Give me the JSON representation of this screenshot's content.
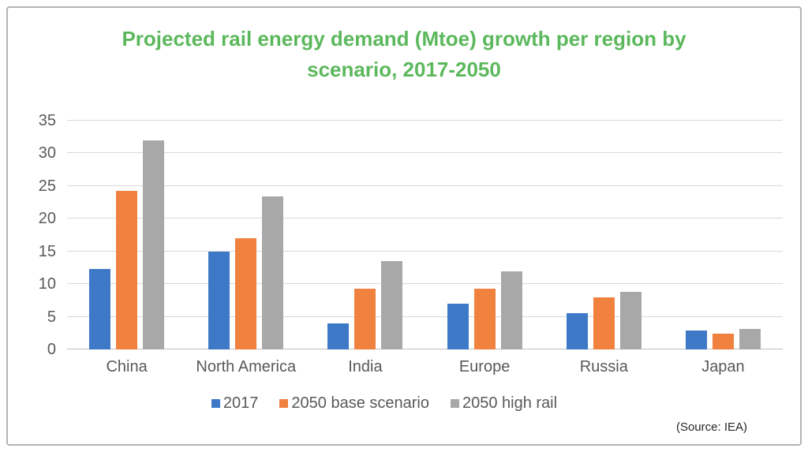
{
  "frame": {
    "border_color": "#b3b3b3",
    "background": "#ffffff"
  },
  "title": {
    "text": "Projected rail energy demand (Mtoe) growth per region by scenario, 2017-2050",
    "lines": [
      "Projected rail energy demand (Mtoe) growth per region by",
      "scenario, 2017-2050"
    ],
    "color": "#5cb85c"
  },
  "source_note": "(Source: IEA)",
  "chart_data": {
    "type": "bar",
    "title": "Projected rail energy demand (Mtoe) growth per region by scenario, 2017-2050",
    "categories": [
      "China",
      "North America",
      "India",
      "Europe",
      "Russia",
      "Japan"
    ],
    "series": [
      {
        "name": "2017",
        "color": "#3d79c7",
        "values": [
          12.3,
          15.0,
          4.0,
          7.0,
          5.6,
          2.9
        ]
      },
      {
        "name": "2050 base scenario",
        "color": "#f0813f",
        "values": [
          24.3,
          17.0,
          9.3,
          9.3,
          8.0,
          2.4
        ]
      },
      {
        "name": "2050 high rail",
        "color": "#a8a8a8",
        "values": [
          32.0,
          23.4,
          13.5,
          11.9,
          8.8,
          3.1
        ]
      }
    ],
    "xlabel": "",
    "ylabel": "",
    "ylim": [
      0,
      35
    ],
    "yticks": [
      0,
      5,
      10,
      15,
      20,
      25,
      30,
      35
    ],
    "grid": true,
    "legend_position": "bottom",
    "gridline_color": "#d9d9d9",
    "baseline_color": "#bfbfbf",
    "axis_label_color": "#595959"
  }
}
